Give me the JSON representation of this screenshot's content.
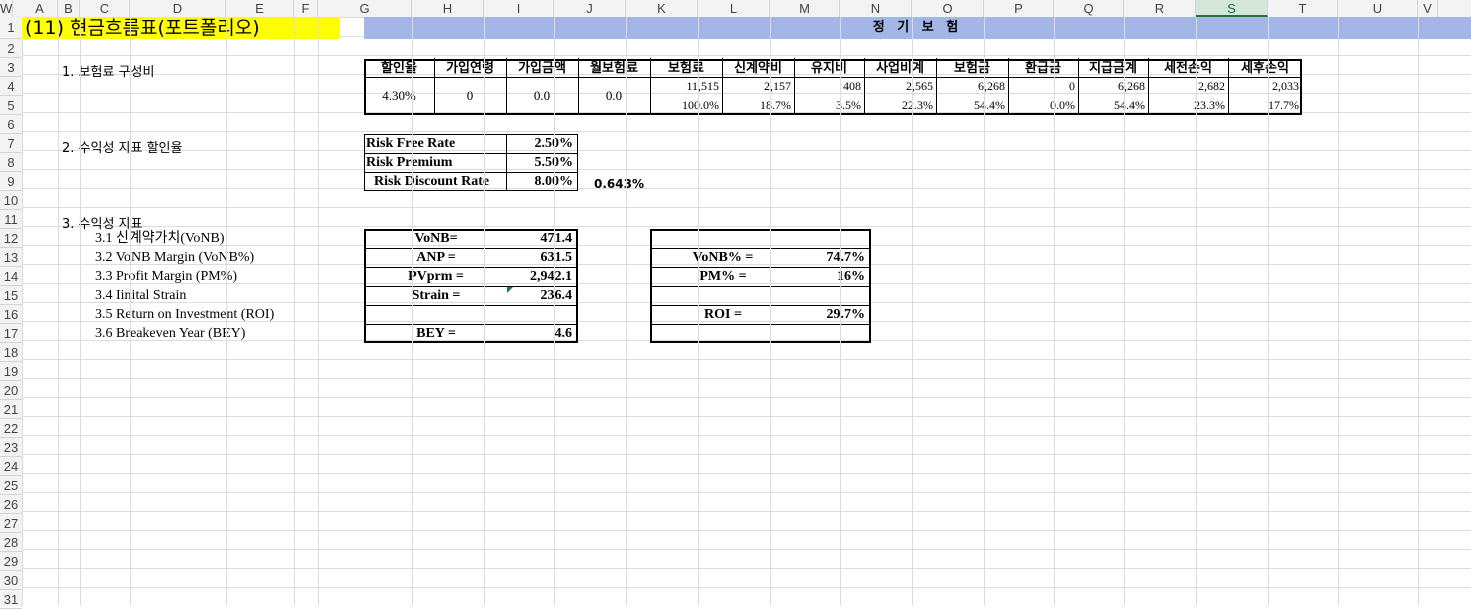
{
  "columns": [
    "A",
    "B",
    "C",
    "D",
    "E",
    "F",
    "G",
    "H",
    "I",
    "J",
    "K",
    "L",
    "M",
    "N",
    "O",
    "P",
    "Q",
    "R",
    "S",
    "T",
    "U",
    "V",
    "W"
  ],
  "rows": [
    "1",
    "2",
    "3",
    "4",
    "5",
    "6",
    "7",
    "8",
    "9",
    "10",
    "11",
    "12",
    "13",
    "14",
    "15",
    "16",
    "17",
    "18",
    "19",
    "20",
    "21",
    "22",
    "23",
    "24",
    "25",
    "26",
    "27",
    "28",
    "29",
    "30",
    "31"
  ],
  "title": "(11) 현금흐름표(포트폴리오)",
  "band": "정 기 보 험",
  "section1": "1. 보험료 구성비",
  "section2": "2. 수익성 지표 할인율",
  "section3": "3. 수익성 지표",
  "premium_table": {
    "headers": [
      "할인율",
      "가입연령",
      "가입금액",
      "월보험료",
      "보험료",
      "신계약비",
      "유지비",
      "사업비계",
      "보험금",
      "환급금",
      "지급금계",
      "세전손익",
      "세후손익"
    ],
    "fixed": [
      "4.30%",
      "0",
      "0.0",
      "0.0"
    ],
    "row4": [
      "11,515",
      "2,157",
      "408",
      "2,565",
      "6,268",
      "0",
      "6,268",
      "2,682",
      "2,033"
    ],
    "row5": [
      "100.0%",
      "18.7%",
      "3.5%",
      "22.3%",
      "54.4%",
      "0.0%",
      "54.4%",
      "23.3%",
      "17.7%"
    ]
  },
  "discount": {
    "rows": [
      {
        "label": "Risk Free Rate",
        "value": "2.50%"
      },
      {
        "label": "Risk Premium",
        "value": "5.50%"
      },
      {
        "label": "Risk Discount Rate",
        "value": "8.00%"
      }
    ],
    "monthly": "0.643%"
  },
  "indicators": [
    "3.1 신계약가치(VoNB)",
    "3.2 VoNB Margin (VoNB%)",
    "3.3 Profit Margin (PM%)",
    "3.4 Iinital Strain",
    "3.5 Return on Investment (ROI)",
    "3.6 Breakeven Year (BEY)"
  ],
  "box1": [
    {
      "label": "VoNB=",
      "value": "471.4"
    },
    {
      "label": "ANP =",
      "value": "631.5"
    },
    {
      "label": "PVprm =",
      "value": "2,942.1"
    },
    {
      "label": "Strain =",
      "value": "236.4"
    },
    {
      "label": "",
      "value": ""
    },
    {
      "label": "BEY =",
      "value": "4.6"
    }
  ],
  "box2": [
    {
      "label": "",
      "value": ""
    },
    {
      "label": "VoNB% =",
      "value": "74.7%"
    },
    {
      "label": "PM% =",
      "value": "16%"
    },
    {
      "label": "",
      "value": ""
    },
    {
      "label": "ROI =",
      "value": "29.7%"
    },
    {
      "label": "",
      "value": ""
    }
  ]
}
